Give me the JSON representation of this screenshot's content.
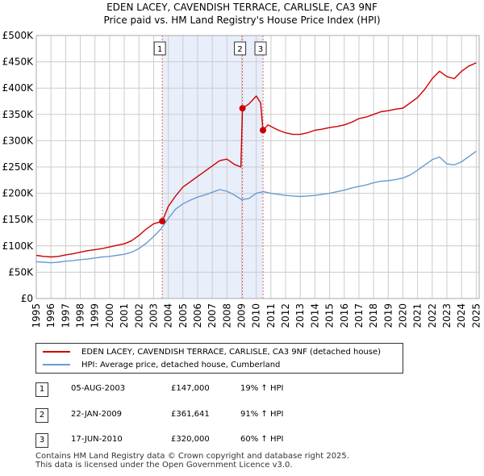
{
  "chart_data": {
    "type": "line",
    "title": "EDEN LACEY, CAVENDISH TERRACE, CARLISLE, CA3 9NF",
    "subtitle": "Price paid vs. HM Land Registry's House Price Index (HPI)",
    "xlim": [
      1995,
      2025.2
    ],
    "ylim": [
      0,
      500000
    ],
    "x_ticks": [
      1995,
      1996,
      1997,
      1998,
      1999,
      2000,
      2001,
      2002,
      2003,
      2004,
      2005,
      2006,
      2007,
      2008,
      2009,
      2010,
      2011,
      2012,
      2013,
      2014,
      2015,
      2016,
      2017,
      2018,
      2019,
      2020,
      2021,
      2022,
      2023,
      2024,
      2025
    ],
    "y_ticks": [
      0,
      50000,
      100000,
      150000,
      200000,
      250000,
      300000,
      350000,
      400000,
      450000,
      500000
    ],
    "y_tick_labels": [
      "£0",
      "£50K",
      "£100K",
      "£150K",
      "£200K",
      "£250K",
      "£300K",
      "£350K",
      "£400K",
      "£450K",
      "£500K"
    ],
    "grid": true,
    "shaded_region": [
      2003.6,
      2010.46
    ],
    "series": [
      {
        "name": "EDEN LACEY, CAVENDISH TERRACE, CARLISLE, CA3 9NF (detached house)",
        "color": "#cc0000",
        "x": [
          1995,
          1995.5,
          1996,
          1996.5,
          1997,
          1997.5,
          1998,
          1998.5,
          1999,
          1999.5,
          2000,
          2000.5,
          2001,
          2001.5,
          2002,
          2002.5,
          2003,
          2003.6,
          2004,
          2004.5,
          2005,
          2005.5,
          2006,
          2006.5,
          2007,
          2007.5,
          2008,
          2008.5,
          2008.95,
          2009.0,
          2009.06,
          2009.5,
          2010,
          2010.3,
          2010.46,
          2010.8,
          2011,
          2011.5,
          2012,
          2012.5,
          2013,
          2013.5,
          2014,
          2014.5,
          2015,
          2015.5,
          2016,
          2016.5,
          2017,
          2017.5,
          2018,
          2018.5,
          2019,
          2019.5,
          2020,
          2020.5,
          2021,
          2021.5,
          2022,
          2022.5,
          2023,
          2023.5,
          2024,
          2024.5,
          2025
        ],
        "values": [
          82000,
          80000,
          79000,
          80000,
          83000,
          85000,
          88000,
          91000,
          93000,
          95000,
          98000,
          101000,
          104000,
          110000,
          120000,
          132000,
          142000,
          147000,
          175000,
          195000,
          212000,
          222000,
          232000,
          242000,
          252000,
          262000,
          265000,
          255000,
          250000,
          300000,
          361641,
          370000,
          385000,
          372000,
          320000,
          330000,
          327000,
          320000,
          315000,
          312000,
          312000,
          315000,
          320000,
          322000,
          325000,
          327000,
          330000,
          335000,
          342000,
          345000,
          350000,
          355000,
          357000,
          360000,
          362000,
          372000,
          382000,
          398000,
          418000,
          432000,
          422000,
          418000,
          432000,
          442000,
          448000
        ]
      },
      {
        "name": "HPI: Average price, detached house, Cumberland",
        "color": "#6a9bd1",
        "x": [
          1995,
          1995.5,
          1996,
          1996.5,
          1997,
          1997.5,
          1998,
          1998.5,
          1999,
          1999.5,
          2000,
          2000.5,
          2001,
          2001.5,
          2002,
          2002.5,
          2003,
          2003.5,
          2004,
          2004.5,
          2005,
          2005.5,
          2006,
          2006.5,
          2007,
          2007.5,
          2008,
          2008.5,
          2009,
          2009.5,
          2010,
          2010.5,
          2011,
          2011.5,
          2012,
          2012.5,
          2013,
          2013.5,
          2014,
          2014.5,
          2015,
          2015.5,
          2016,
          2016.5,
          2017,
          2017.5,
          2018,
          2018.5,
          2019,
          2019.5,
          2020,
          2020.5,
          2021,
          2021.5,
          2022,
          2022.5,
          2023,
          2023.5,
          2024,
          2024.5,
          2025
        ],
        "values": [
          70000,
          69000,
          68000,
          69000,
          71000,
          72000,
          74000,
          75000,
          77000,
          79000,
          80000,
          82000,
          84000,
          88000,
          95000,
          105000,
          118000,
          132000,
          152000,
          170000,
          180000,
          187000,
          193000,
          197000,
          202000,
          207000,
          204000,
          197000,
          188000,
          190000,
          200000,
          203000,
          200000,
          198000,
          196000,
          195000,
          194000,
          195000,
          196000,
          198000,
          200000,
          203000,
          206000,
          210000,
          213000,
          216000,
          220000,
          223000,
          224000,
          226000,
          229000,
          235000,
          244000,
          254000,
          264000,
          269000,
          256000,
          254000,
          260000,
          270000,
          280000
        ]
      }
    ],
    "sale_markers": [
      {
        "label": "1",
        "x": 2003.59,
        "value": 147000
      },
      {
        "label": "2",
        "x": 2009.06,
        "value": 361641
      },
      {
        "label": "3",
        "x": 2010.46,
        "value": 320000
      }
    ]
  },
  "legend": {
    "property_label": "EDEN LACEY, CAVENDISH TERRACE, CARLISLE, CA3 9NF (detached house)",
    "hpi_label": "HPI: Average price, detached house, Cumberland"
  },
  "sales": [
    {
      "num": "1",
      "date": "05-AUG-2003",
      "price": "£147,000",
      "hpi": "19% ↑ HPI"
    },
    {
      "num": "2",
      "date": "22-JAN-2009",
      "price": "£361,641",
      "hpi": "91% ↑ HPI"
    },
    {
      "num": "3",
      "date": "17-JUN-2010",
      "price": "£320,000",
      "hpi": "60% ↑ HPI"
    }
  ],
  "footer": {
    "line1": "Contains HM Land Registry data © Crown copyright and database right 2025.",
    "line2": "This data is licensed under the Open Government Licence v3.0."
  }
}
